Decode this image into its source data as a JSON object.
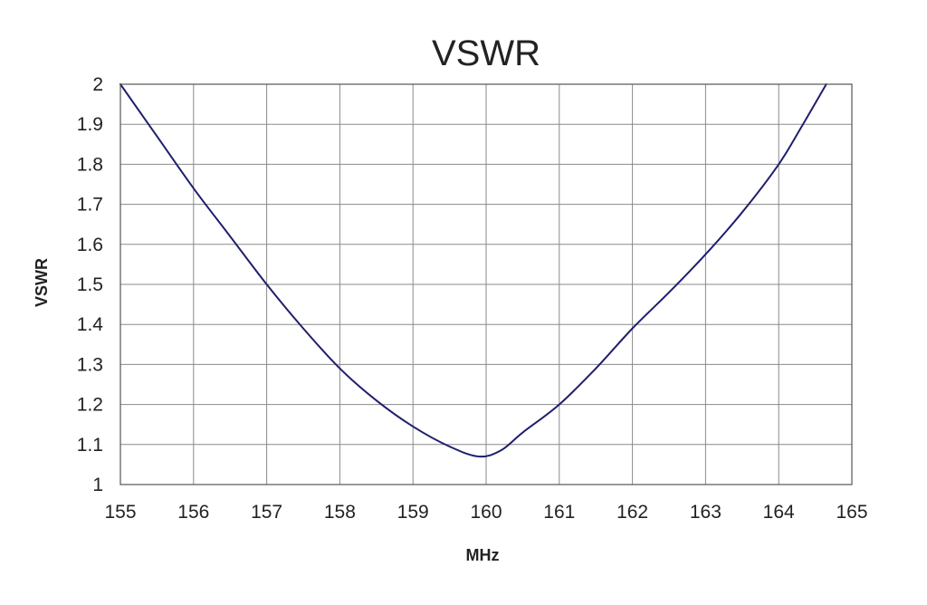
{
  "chart_data": {
    "type": "line",
    "title": "VSWR",
    "xlabel": "MHz",
    "ylabel": "VSWR",
    "xlim": [
      155,
      165
    ],
    "ylim": [
      1,
      2
    ],
    "x_ticks": [
      "155",
      "156",
      "157",
      "158",
      "159",
      "160",
      "161",
      "162",
      "163",
      "164",
      "165"
    ],
    "y_ticks": [
      "1",
      "1.1",
      "1.2",
      "1.3",
      "1.4",
      "1.5",
      "1.6",
      "1.7",
      "1.8",
      "1.9",
      "2"
    ],
    "grid": true,
    "series": [
      {
        "color": "#1f1f6e",
        "x": [
          155,
          155.5,
          156,
          156.5,
          157,
          157.5,
          158,
          158.5,
          159,
          159.5,
          159.9,
          160.2,
          160.5,
          161,
          161.5,
          162,
          162.5,
          163,
          163.5,
          164,
          164.3,
          164.65
        ],
        "y": [
          2.0,
          1.87,
          1.74,
          1.62,
          1.5,
          1.39,
          1.29,
          1.21,
          1.145,
          1.095,
          1.07,
          1.085,
          1.13,
          1.2,
          1.29,
          1.39,
          1.48,
          1.575,
          1.68,
          1.8,
          1.89,
          2.0
        ]
      }
    ]
  }
}
